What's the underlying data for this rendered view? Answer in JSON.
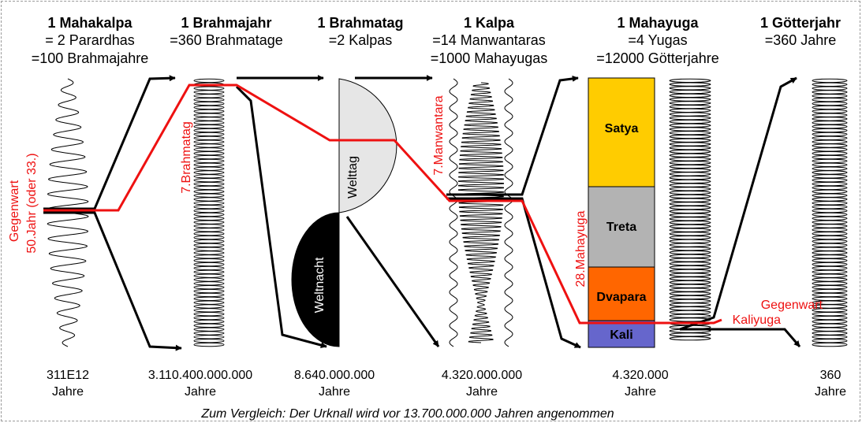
{
  "columns": [
    {
      "key": "mahakalpa",
      "title": "1 Mahakalpa",
      "lines": [
        "= 2 Parardhas",
        "=100 Brahmajahre"
      ],
      "value": "311E12",
      "unit": "Jahre"
    },
    {
      "key": "brahmajahr",
      "title": "1 Brahmajahr",
      "lines": [
        "=360 Brahmatage"
      ],
      "value": "3.110.400.000.000",
      "unit": "Jahre"
    },
    {
      "key": "brahmatag",
      "title": "1 Brahmatag",
      "lines": [
        "=2 Kalpas"
      ],
      "value": "8.640.000.000",
      "unit": "Jahre"
    },
    {
      "key": "kalpa",
      "title": "1 Kalpa",
      "lines": [
        "=14 Manwantaras",
        "=1000 Mahayugas"
      ],
      "value": "4.320.000.000",
      "unit": "Jahre"
    },
    {
      "key": "mahayuga",
      "title": "1 Mahayuga",
      "lines": [
        "=4 Yugas",
        "=12000 Götterjahre"
      ],
      "value": "4.320.000",
      "unit": "Jahre"
    },
    {
      "key": "goetterjahr",
      "title": "1 Götterjahr",
      "lines": [
        "=360 Jahre"
      ],
      "value": "360",
      "unit": "Jahre"
    }
  ],
  "red_labels": {
    "gegenwart_left_1": "Gegenwart",
    "gegenwart_left_2": "50.Jahr (oder 33.)",
    "brahmatag": "7.Brahmatag",
    "manwantara": "7.Manwantara",
    "mahayuga": "28.Mahayuga",
    "gegenwart_right": "Gegenwart",
    "kaliyuga": "Kaliyuga"
  },
  "day_night": {
    "day": "Welttag",
    "night": "Weltnacht"
  },
  "yugas": [
    {
      "name": "Satya",
      "color": "#ffcc00"
    },
    {
      "name": "Treta",
      "color": "#b3b3b3"
    },
    {
      "name": "Dvapara",
      "color": "#ff6600"
    },
    {
      "name": "Kali",
      "color": "#6666cc"
    }
  ],
  "footer": "Zum Vergleich: Der Urknall wird vor 13.700.000.000 Jahren angenommen",
  "colors": {
    "highlight": "#ee1111",
    "lines": "#000000",
    "day": "#e6e6e6",
    "night": "#000000"
  }
}
